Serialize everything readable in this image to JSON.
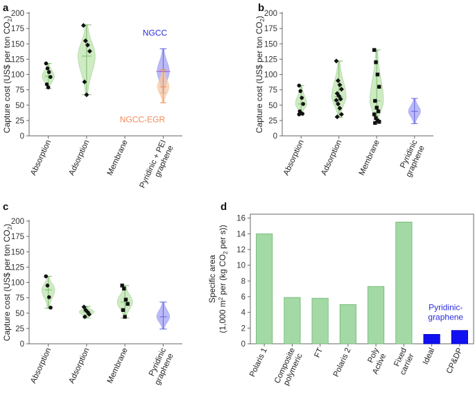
{
  "colors": {
    "green_fill": "#c6e7b9",
    "green_stroke": "#a6cf96",
    "green_line": "#7cba6b",
    "blue_fill": "#a3a3f4",
    "blue_line": "#6060e0",
    "orange_fill": "#f7caa0",
    "orange_line": "#f08a5a",
    "purple_line": "#9b5aa8",
    "bar_green": "#a3d9a5",
    "bar_blue": "#1010f0"
  },
  "chart_data": [
    {
      "id": "a",
      "type": "violin",
      "panel_letter": "a",
      "ylabel": "Capture cost (US$ per ton CO",
      "ylabel_sub": "2",
      "ylabel_end": ")",
      "ylim": [
        0,
        200
      ],
      "yticks": [
        "0",
        "25",
        "50",
        "75",
        "100",
        "125",
        "150",
        "175",
        "200"
      ],
      "categories": [
        "Absorption",
        "Adsorption",
        "Membrane",
        "Pyridinic + PEI"
      ],
      "category_line2": [
        "",
        "",
        "",
        "graphene"
      ],
      "violins": [
        {
          "cat": 0,
          "color": "green",
          "min": 77,
          "max": 118,
          "center": 97,
          "width": 0.32,
          "points": [
            118,
            110,
            104,
            96,
            84,
            79
          ],
          "marker": "circle"
        },
        {
          "cat": 1,
          "color": "green",
          "min": 67,
          "max": 181,
          "center": 130,
          "width": 0.45,
          "points": [
            180,
            155,
            148,
            138,
            88,
            67
          ],
          "marker": "diamond"
        },
        {
          "cat": 3,
          "color": "blue",
          "min": 70,
          "max": 142,
          "center": 105,
          "width": 0.32,
          "points": [],
          "marker": "none"
        },
        {
          "cat": 3,
          "color": "orange",
          "min": 54,
          "max": 108,
          "center": 80,
          "width": 0.3,
          "points": [],
          "marker": "none"
        }
      ],
      "annotations": [
        {
          "text": "NGCC",
          "color": "blue"
        },
        {
          "text": "NGCC-EGR",
          "color": "orange"
        }
      ]
    },
    {
      "id": "b",
      "type": "violin",
      "panel_letter": "b",
      "ylabel": "Capture cost (US$ per ton CO",
      "ylabel_sub": "2",
      "ylabel_end": ")",
      "ylim": [
        0,
        200
      ],
      "yticks": [
        "0",
        "25",
        "50",
        "75",
        "100",
        "125",
        "150",
        "175",
        "200"
      ],
      "categories": [
        "Absorption",
        "Adsorption",
        "Membrane",
        "Pyridinic"
      ],
      "category_line2": [
        "",
        "",
        "",
        "graphene"
      ],
      "violins": [
        {
          "cat": 0,
          "color": "green",
          "min": 35,
          "max": 82,
          "center": 52,
          "width": 0.3,
          "points": [
            82,
            73,
            62,
            52,
            40,
            37,
            36,
            35
          ],
          "marker": "circle"
        },
        {
          "cat": 1,
          "color": "green",
          "min": 30,
          "max": 122,
          "center": 64,
          "width": 0.38,
          "points": [
            122,
            90,
            83,
            76,
            69,
            65,
            60,
            58,
            52,
            45,
            35,
            31
          ],
          "marker": "diamond"
        },
        {
          "cat": 2,
          "color": "green",
          "min": 20,
          "max": 140,
          "center": 57,
          "width": 0.36,
          "points": [
            140,
            120,
            100,
            80,
            57,
            46,
            40,
            35,
            29,
            25,
            23,
            21
          ],
          "marker": "square"
        },
        {
          "cat": 3,
          "color": "blue",
          "min": 20,
          "max": 61,
          "center": 40,
          "width": 0.32,
          "points": [],
          "marker": "none"
        }
      ],
      "annotations": []
    },
    {
      "id": "c",
      "type": "violin",
      "panel_letter": "c",
      "ylabel": "Capture cost (US$ per ton CO",
      "ylabel_sub": "2",
      "ylabel_end": ")",
      "ylim": [
        0,
        200
      ],
      "yticks": [
        "0",
        "25",
        "50",
        "75",
        "100",
        "125",
        "150",
        "175",
        "200"
      ],
      "categories": [
        "Absorption",
        "Adsorption",
        "Membrane",
        "Pyridinic"
      ],
      "category_line2": [
        "",
        "",
        "",
        "graphene"
      ],
      "violins": [
        {
          "cat": 0,
          "color": "green",
          "min": 58,
          "max": 110,
          "center": 88,
          "width": 0.34,
          "points": [
            110,
            95,
            76,
            59
          ],
          "marker": "circle"
        },
        {
          "cat": 1,
          "color": "green",
          "min": 42,
          "max": 61,
          "center": 52,
          "width": 0.38,
          "points": [
            60,
            55,
            52,
            48,
            44
          ],
          "marker": "diamond"
        },
        {
          "cat": 2,
          "color": "green",
          "min": 42,
          "max": 95,
          "center": 68,
          "width": 0.4,
          "points": [
            95,
            90,
            72,
            65,
            55,
            44
          ],
          "marker": "square"
        },
        {
          "cat": 3,
          "color": "blue",
          "min": 24,
          "max": 68,
          "center": 44,
          "width": 0.34,
          "points": [],
          "marker": "none"
        }
      ],
      "annotations": []
    },
    {
      "id": "d",
      "type": "bar",
      "panel_letter": "d",
      "ylabel_line1": "Specific area",
      "ylabel_line2": "(1,000 m",
      "ylabel_line2_sup": "2",
      "ylabel_line2_rest": " per (kg CO",
      "ylabel_line2_sub": "2",
      "ylabel_line2_end": " per s))",
      "ylim": [
        0,
        16.5
      ],
      "yticks": [
        "0",
        "2",
        "4",
        "6",
        "8",
        "10",
        "12",
        "14",
        "16"
      ],
      "categories": [
        "Polaris 1",
        "Composite",
        "FT",
        "Polaris 2",
        "Poly",
        "Fixed",
        "Ideal",
        "CP&DP"
      ],
      "category_line2": [
        "",
        "polymeric",
        "",
        "",
        "Active",
        "carrier",
        "",
        ""
      ],
      "values": [
        14.0,
        5.9,
        5.8,
        5.0,
        7.3,
        15.5,
        1.2,
        1.7
      ],
      "bar_colors": [
        "green",
        "green",
        "green",
        "green",
        "green",
        "green",
        "blue",
        "blue"
      ],
      "annotation_line1": "Pyridinic-",
      "annotation_line2": "graphene"
    }
  ]
}
